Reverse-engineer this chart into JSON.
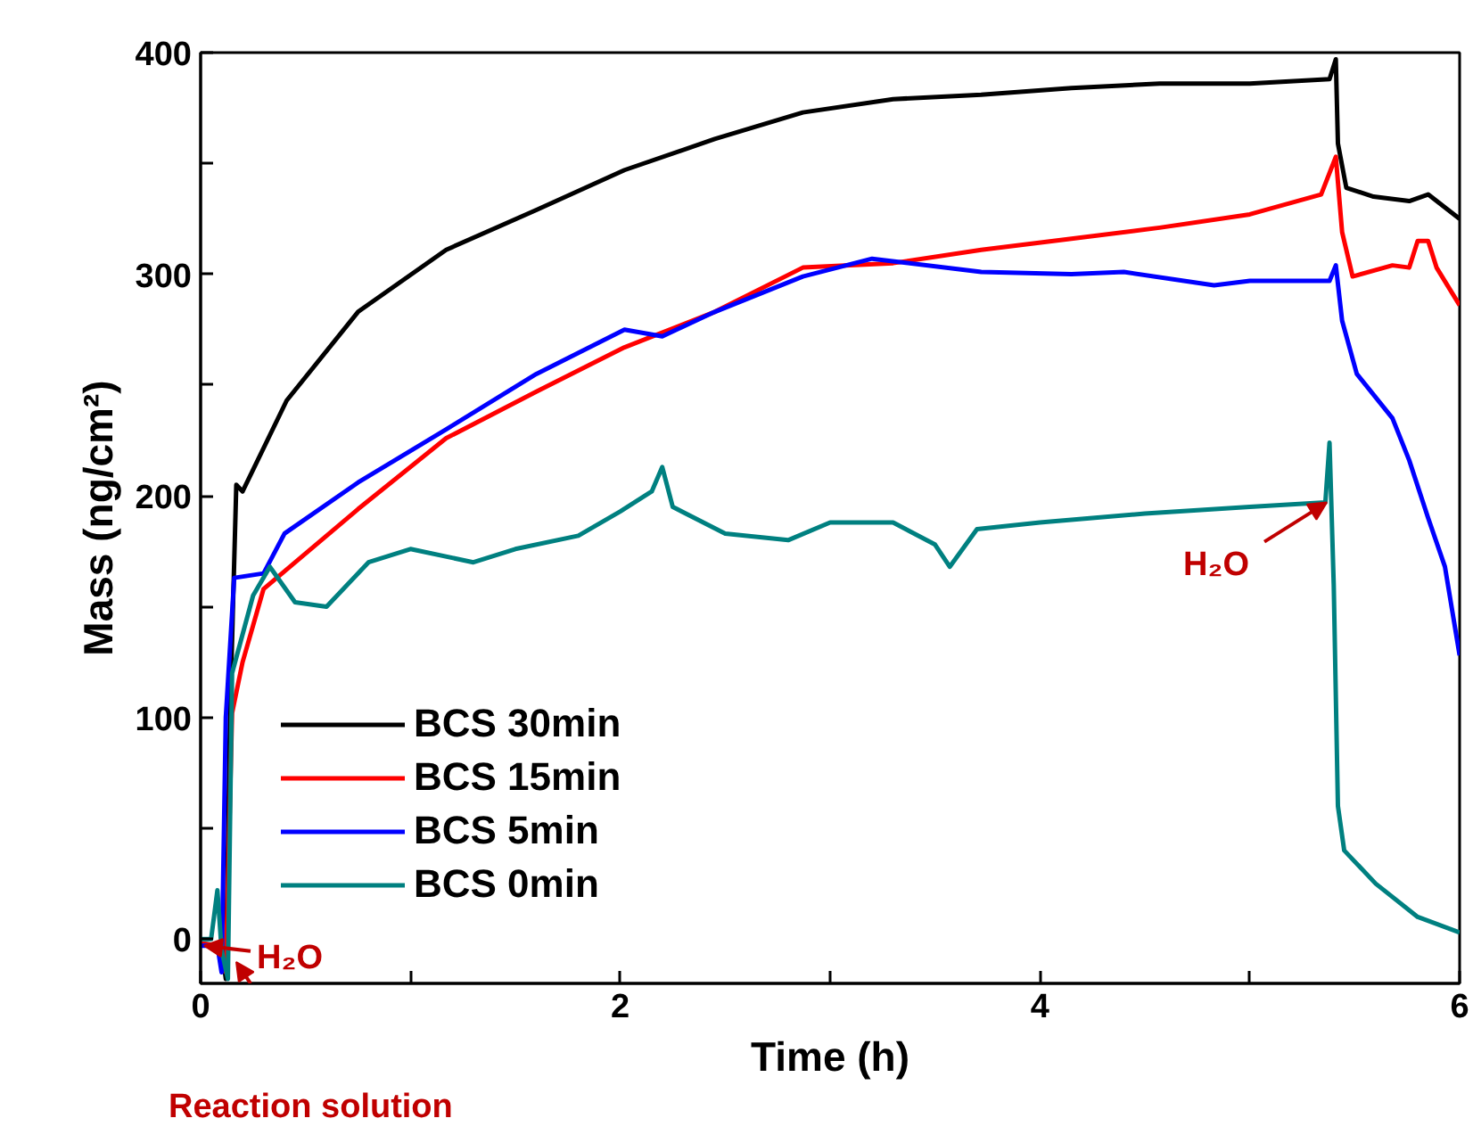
{
  "chart_data": {
    "type": "line",
    "xlabel": "Time (h)",
    "ylabel": "Mass (ng/cm²)",
    "xlim": [
      0,
      6
    ],
    "ylim": [
      -20,
      400
    ],
    "xticks": [
      0,
      {
        "value": 1,
        "label": null
      },
      2,
      {
        "value": 3,
        "label": null
      },
      4,
      {
        "value": 5,
        "label": null
      },
      6
    ],
    "yticks": [
      0,
      {
        "value": 50,
        "label": null
      },
      100,
      {
        "value": 150,
        "label": null
      },
      200,
      {
        "value": 250,
        "label": null
      },
      300,
      {
        "value": 350,
        "label": null
      },
      400
    ],
    "grid": false,
    "legend": "bottom left",
    "line_style": "solid",
    "marker": "none",
    "annotations": [
      {
        "text": "H₂O",
        "x": 0,
        "y": -3
      },
      "Reaction solution",
      {
        "text": "H₂O",
        "x": 5.35,
        "y": 197
      }
    ],
    "series": [
      {
        "name": "BCS 30min",
        "color": "#000000",
        "x": [
          0,
          0.1,
          0.12,
          0.14,
          0.17,
          0.2,
          0.41,
          0.75,
          1.17,
          1.6,
          2.02,
          2.45,
          2.87,
          3.3,
          3.72,
          4.15,
          4.57,
          5.0,
          5.38,
          5.41,
          5.42,
          5.46,
          5.59,
          5.76,
          5.85,
          6.0
        ],
        "values": [
          -2,
          -3,
          -18,
          100,
          205,
          202,
          243,
          283,
          311,
          329,
          347,
          361,
          373,
          379,
          381,
          384,
          386,
          386,
          388,
          397,
          359,
          339,
          335,
          333,
          336,
          325
        ]
      },
      {
        "name": "BCS 15min",
        "color": "#ff0000",
        "x": [
          0,
          0.08,
          0.12,
          0.15,
          0.2,
          0.3,
          0.75,
          1.17,
          1.6,
          2.02,
          2.45,
          2.87,
          3.3,
          3.72,
          4.15,
          4.57,
          5.0,
          5.34,
          5.41,
          5.44,
          5.49,
          5.68,
          5.76,
          5.8,
          5.85,
          5.89,
          6.0
        ],
        "values": [
          -2,
          -3,
          -15,
          102,
          125,
          158,
          194,
          226,
          247,
          267,
          283,
          303,
          305,
          311,
          316,
          321,
          327,
          336,
          353,
          319,
          299,
          304,
          303,
          315,
          315,
          303,
          286
        ]
      },
      {
        "name": "BCS 5min",
        "color": "#0000ff",
        "x": [
          0,
          0.08,
          0.1,
          0.12,
          0.16,
          0.3,
          0.4,
          0.75,
          1.17,
          1.6,
          2.02,
          2.2,
          2.45,
          2.87,
          3.2,
          3.72,
          4.15,
          4.4,
          4.83,
          5.0,
          5.38,
          5.41,
          5.44,
          5.51,
          5.68,
          5.76,
          5.85,
          5.93,
          6.0
        ],
        "values": [
          -3,
          -3,
          -15,
          100,
          163,
          165,
          183,
          206,
          230,
          255,
          275,
          272,
          283,
          299,
          307,
          301,
          300,
          301,
          295,
          297,
          297,
          304,
          279,
          255,
          235,
          216,
          190,
          168,
          128
        ]
      },
      {
        "name": "BCS 0min",
        "color": "#008080",
        "x": [
          0,
          0.05,
          0.08,
          0.1,
          0.13,
          0.15,
          0.25,
          0.33,
          0.45,
          0.6,
          0.8,
          1.0,
          1.3,
          1.5,
          1.8,
          2.0,
          2.15,
          2.2,
          2.25,
          2.5,
          2.8,
          3.0,
          3.3,
          3.5,
          3.57,
          3.7,
          4.0,
          4.5,
          5.0,
          5.36,
          5.38,
          5.4,
          5.42,
          5.45,
          5.6,
          5.8,
          6.0
        ],
        "values": [
          0,
          0,
          22,
          -5,
          -18,
          120,
          155,
          168,
          152,
          150,
          170,
          176,
          170,
          176,
          182,
          193,
          202,
          213,
          195,
          183,
          180,
          188,
          188,
          178,
          168,
          185,
          188,
          192,
          195,
          197,
          224,
          160,
          60,
          40,
          25,
          10,
          3
        ]
      }
    ]
  }
}
